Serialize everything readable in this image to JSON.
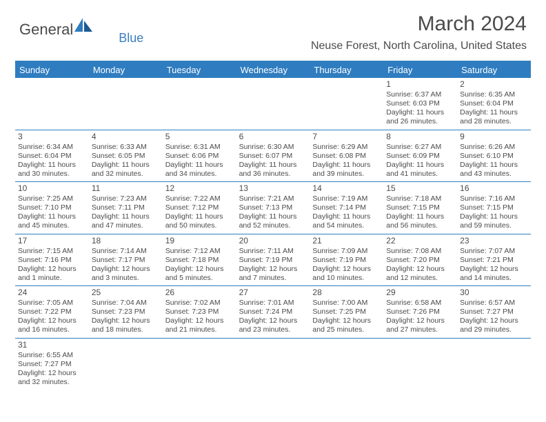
{
  "logo": {
    "part1": "General",
    "part2": "Blue"
  },
  "title": "March 2024",
  "subtitle": "Neuse Forest, North Carolina, United States",
  "colors": {
    "header_bg": "#2f7dc0",
    "header_fg": "#ffffff",
    "text": "#4a4a4a",
    "rule": "#2f7dc0",
    "logo_blue": "#3b7fbf"
  },
  "day_headers": [
    "Sunday",
    "Monday",
    "Tuesday",
    "Wednesday",
    "Thursday",
    "Friday",
    "Saturday"
  ],
  "weeks": [
    [
      null,
      null,
      null,
      null,
      null,
      {
        "n": "1",
        "sr": "Sunrise: 6:37 AM",
        "ss": "Sunset: 6:03 PM",
        "dl1": "Daylight: 11 hours",
        "dl2": "and 26 minutes."
      },
      {
        "n": "2",
        "sr": "Sunrise: 6:35 AM",
        "ss": "Sunset: 6:04 PM",
        "dl1": "Daylight: 11 hours",
        "dl2": "and 28 minutes."
      }
    ],
    [
      {
        "n": "3",
        "sr": "Sunrise: 6:34 AM",
        "ss": "Sunset: 6:04 PM",
        "dl1": "Daylight: 11 hours",
        "dl2": "and 30 minutes."
      },
      {
        "n": "4",
        "sr": "Sunrise: 6:33 AM",
        "ss": "Sunset: 6:05 PM",
        "dl1": "Daylight: 11 hours",
        "dl2": "and 32 minutes."
      },
      {
        "n": "5",
        "sr": "Sunrise: 6:31 AM",
        "ss": "Sunset: 6:06 PM",
        "dl1": "Daylight: 11 hours",
        "dl2": "and 34 minutes."
      },
      {
        "n": "6",
        "sr": "Sunrise: 6:30 AM",
        "ss": "Sunset: 6:07 PM",
        "dl1": "Daylight: 11 hours",
        "dl2": "and 36 minutes."
      },
      {
        "n": "7",
        "sr": "Sunrise: 6:29 AM",
        "ss": "Sunset: 6:08 PM",
        "dl1": "Daylight: 11 hours",
        "dl2": "and 39 minutes."
      },
      {
        "n": "8",
        "sr": "Sunrise: 6:27 AM",
        "ss": "Sunset: 6:09 PM",
        "dl1": "Daylight: 11 hours",
        "dl2": "and 41 minutes."
      },
      {
        "n": "9",
        "sr": "Sunrise: 6:26 AM",
        "ss": "Sunset: 6:10 PM",
        "dl1": "Daylight: 11 hours",
        "dl2": "and 43 minutes."
      }
    ],
    [
      {
        "n": "10",
        "sr": "Sunrise: 7:25 AM",
        "ss": "Sunset: 7:10 PM",
        "dl1": "Daylight: 11 hours",
        "dl2": "and 45 minutes."
      },
      {
        "n": "11",
        "sr": "Sunrise: 7:23 AM",
        "ss": "Sunset: 7:11 PM",
        "dl1": "Daylight: 11 hours",
        "dl2": "and 47 minutes."
      },
      {
        "n": "12",
        "sr": "Sunrise: 7:22 AM",
        "ss": "Sunset: 7:12 PM",
        "dl1": "Daylight: 11 hours",
        "dl2": "and 50 minutes."
      },
      {
        "n": "13",
        "sr": "Sunrise: 7:21 AM",
        "ss": "Sunset: 7:13 PM",
        "dl1": "Daylight: 11 hours",
        "dl2": "and 52 minutes."
      },
      {
        "n": "14",
        "sr": "Sunrise: 7:19 AM",
        "ss": "Sunset: 7:14 PM",
        "dl1": "Daylight: 11 hours",
        "dl2": "and 54 minutes."
      },
      {
        "n": "15",
        "sr": "Sunrise: 7:18 AM",
        "ss": "Sunset: 7:15 PM",
        "dl1": "Daylight: 11 hours",
        "dl2": "and 56 minutes."
      },
      {
        "n": "16",
        "sr": "Sunrise: 7:16 AM",
        "ss": "Sunset: 7:15 PM",
        "dl1": "Daylight: 11 hours",
        "dl2": "and 59 minutes."
      }
    ],
    [
      {
        "n": "17",
        "sr": "Sunrise: 7:15 AM",
        "ss": "Sunset: 7:16 PM",
        "dl1": "Daylight: 12 hours",
        "dl2": "and 1 minute."
      },
      {
        "n": "18",
        "sr": "Sunrise: 7:14 AM",
        "ss": "Sunset: 7:17 PM",
        "dl1": "Daylight: 12 hours",
        "dl2": "and 3 minutes."
      },
      {
        "n": "19",
        "sr": "Sunrise: 7:12 AM",
        "ss": "Sunset: 7:18 PM",
        "dl1": "Daylight: 12 hours",
        "dl2": "and 5 minutes."
      },
      {
        "n": "20",
        "sr": "Sunrise: 7:11 AM",
        "ss": "Sunset: 7:19 PM",
        "dl1": "Daylight: 12 hours",
        "dl2": "and 7 minutes."
      },
      {
        "n": "21",
        "sr": "Sunrise: 7:09 AM",
        "ss": "Sunset: 7:19 PM",
        "dl1": "Daylight: 12 hours",
        "dl2": "and 10 minutes."
      },
      {
        "n": "22",
        "sr": "Sunrise: 7:08 AM",
        "ss": "Sunset: 7:20 PM",
        "dl1": "Daylight: 12 hours",
        "dl2": "and 12 minutes."
      },
      {
        "n": "23",
        "sr": "Sunrise: 7:07 AM",
        "ss": "Sunset: 7:21 PM",
        "dl1": "Daylight: 12 hours",
        "dl2": "and 14 minutes."
      }
    ],
    [
      {
        "n": "24",
        "sr": "Sunrise: 7:05 AM",
        "ss": "Sunset: 7:22 PM",
        "dl1": "Daylight: 12 hours",
        "dl2": "and 16 minutes."
      },
      {
        "n": "25",
        "sr": "Sunrise: 7:04 AM",
        "ss": "Sunset: 7:23 PM",
        "dl1": "Daylight: 12 hours",
        "dl2": "and 18 minutes."
      },
      {
        "n": "26",
        "sr": "Sunrise: 7:02 AM",
        "ss": "Sunset: 7:23 PM",
        "dl1": "Daylight: 12 hours",
        "dl2": "and 21 minutes."
      },
      {
        "n": "27",
        "sr": "Sunrise: 7:01 AM",
        "ss": "Sunset: 7:24 PM",
        "dl1": "Daylight: 12 hours",
        "dl2": "and 23 minutes."
      },
      {
        "n": "28",
        "sr": "Sunrise: 7:00 AM",
        "ss": "Sunset: 7:25 PM",
        "dl1": "Daylight: 12 hours",
        "dl2": "and 25 minutes."
      },
      {
        "n": "29",
        "sr": "Sunrise: 6:58 AM",
        "ss": "Sunset: 7:26 PM",
        "dl1": "Daylight: 12 hours",
        "dl2": "and 27 minutes."
      },
      {
        "n": "30",
        "sr": "Sunrise: 6:57 AM",
        "ss": "Sunset: 7:27 PM",
        "dl1": "Daylight: 12 hours",
        "dl2": "and 29 minutes."
      }
    ],
    [
      {
        "n": "31",
        "sr": "Sunrise: 6:55 AM",
        "ss": "Sunset: 7:27 PM",
        "dl1": "Daylight: 12 hours",
        "dl2": "and 32 minutes."
      },
      null,
      null,
      null,
      null,
      null,
      null
    ]
  ]
}
